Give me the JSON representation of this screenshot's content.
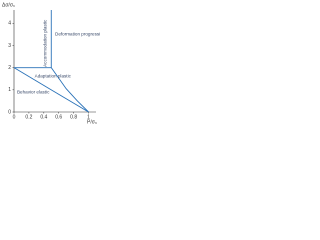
{
  "chart_data": {
    "type": "line",
    "y_label": "Δσ/σ₀",
    "x_label": "P/σ₀",
    "xlim": [
      0,
      1.1
    ],
    "ylim": [
      0,
      4.6
    ],
    "xticks": [
      0,
      0.2,
      0.4,
      0.6,
      0.8,
      1
    ],
    "yticks": [
      0,
      1,
      2,
      3,
      4
    ],
    "series": [
      {
        "color": "#2a72b8",
        "x": [
          0,
          0.5,
          1
        ],
        "values": [
          2,
          1,
          0
        ]
      },
      {
        "color": "#2a72b8",
        "x": [
          0.5,
          0.7,
          0.85,
          1
        ],
        "values": [
          2,
          1.05,
          0.5,
          0
        ]
      },
      {
        "color": "#2a72b8",
        "x": [
          0,
          0.5
        ],
        "values": [
          2,
          2
        ]
      },
      {
        "color": "#2a72b8",
        "x": [
          0.5,
          0.5
        ],
        "values": [
          2,
          4.6
        ]
      }
    ],
    "annotations": [
      "Deformation progressive",
      "Accommodation plastic",
      "Adaptation plastic",
      "Behavior elastic"
    ]
  }
}
